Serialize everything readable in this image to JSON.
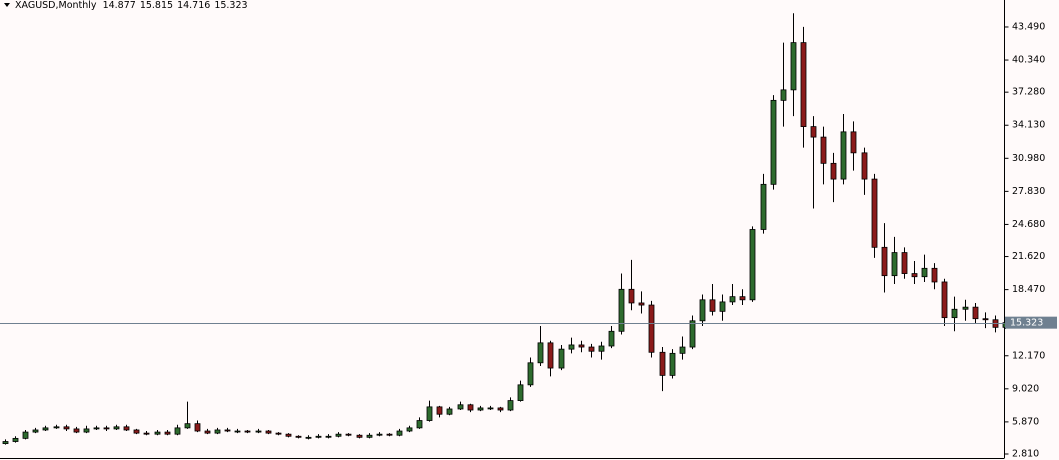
{
  "chart_data": {
    "type": "candlestick",
    "title": "XAGUSD,Monthly",
    "up_color": "#2e6b2e",
    "down_color": "#8b1a1a",
    "wick_color": "#000000",
    "price_line_color": "#6f8090",
    "grid": false,
    "ylim": [
      2.43,
      46.06
    ],
    "yticks": [
      {
        "value": 2.81,
        "label": "2.810"
      },
      {
        "value": 5.87,
        "label": "5.870"
      },
      {
        "value": 9.02,
        "label": "9.020"
      },
      {
        "value": 12.17,
        "label": "12.170"
      },
      {
        "value": 18.47,
        "label": "18.470"
      },
      {
        "value": 21.62,
        "label": "21.620"
      },
      {
        "value": 24.68,
        "label": "24.680"
      },
      {
        "value": 27.83,
        "label": "27.830"
      },
      {
        "value": 30.98,
        "label": "30.980"
      },
      {
        "value": 34.13,
        "label": "34.130"
      },
      {
        "value": 37.28,
        "label": "37.280"
      },
      {
        "value": 40.34,
        "label": "40.340"
      },
      {
        "value": 43.49,
        "label": "43.490"
      }
    ],
    "open": [
      3.8,
      4.0,
      4.3,
      4.9,
      5.1,
      5.3,
      5.4,
      5.2,
      4.9,
      5.2,
      5.3,
      5.2,
      5.4,
      5.1,
      4.8,
      4.7,
      4.9,
      4.7,
      5.3,
      5.7,
      5.0,
      4.8,
      5.1,
      5.0,
      5.0,
      4.9,
      5.0,
      4.8,
      4.7,
      4.5,
      4.4,
      4.4,
      4.5,
      4.5,
      4.7,
      4.6,
      4.4,
      4.6,
      4.7,
      4.6,
      5.0,
      5.3,
      6.0,
      7.3,
      6.6,
      7.1,
      7.5,
      7.0,
      7.2,
      7.2,
      7.0,
      7.9,
      9.4,
      11.5,
      13.4,
      11.0,
      12.8,
      13.2,
      13.0,
      12.6,
      13.1,
      14.5,
      18.5,
      17.2,
      17.0,
      12.5,
      10.3,
      12.4,
      13.0,
      15.5,
      17.5,
      16.4,
      17.3,
      17.8,
      17.5,
      24.2,
      28.5,
      36.5,
      37.5,
      42.0,
      34.0,
      33.0,
      30.5,
      29.0,
      33.5,
      31.5,
      29.0,
      22.5,
      19.8,
      22.0,
      20.0,
      19.7,
      20.5,
      19.2,
      15.8,
      16.6,
      16.8,
      15.7,
      15.6,
      14.877
    ],
    "high": [
      4.2,
      4.5,
      5.1,
      5.3,
      5.5,
      5.6,
      5.6,
      5.4,
      5.5,
      5.5,
      5.5,
      5.6,
      5.6,
      5.2,
      5.0,
      5.1,
      5.1,
      5.6,
      7.8,
      6.0,
      5.2,
      5.3,
      5.3,
      5.2,
      5.1,
      5.2,
      5.1,
      4.9,
      4.8,
      4.6,
      4.6,
      4.7,
      4.7,
      4.9,
      4.8,
      4.7,
      4.8,
      4.9,
      4.8,
      5.2,
      5.5,
      6.3,
      7.9,
      7.4,
      7.3,
      7.8,
      7.6,
      7.4,
      7.4,
      7.3,
      8.2,
      9.8,
      12.0,
      15.0,
      13.6,
      13.2,
      13.9,
      13.6,
      13.3,
      13.5,
      15.0,
      20.0,
      21.3,
      18.3,
      17.4,
      13.0,
      12.8,
      14.0,
      16.0,
      18.0,
      19.0,
      18.0,
      19.0,
      18.5,
      24.5,
      29.5,
      37.0,
      42.0,
      44.8,
      43.5,
      35.0,
      34.0,
      31.5,
      35.2,
      34.5,
      32.0,
      29.5,
      24.8,
      23.5,
      22.5,
      21.2,
      21.8,
      21.0,
      19.5,
      17.8,
      17.5,
      17.2,
      16.3,
      16.0,
      15.815
    ],
    "low": [
      3.7,
      3.9,
      4.2,
      4.8,
      5.0,
      5.2,
      5.0,
      4.8,
      4.8,
      5.1,
      5.0,
      5.1,
      5.0,
      4.7,
      4.6,
      4.6,
      4.6,
      4.6,
      5.2,
      4.9,
      4.7,
      4.7,
      4.9,
      4.8,
      4.8,
      4.8,
      4.7,
      4.6,
      4.4,
      4.3,
      4.2,
      4.3,
      4.3,
      4.4,
      4.5,
      4.3,
      4.3,
      4.5,
      4.5,
      4.5,
      4.9,
      5.2,
      5.9,
      6.3,
      6.5,
      7.0,
      6.8,
      6.9,
      7.0,
      6.8,
      6.9,
      7.8,
      9.2,
      11.2,
      10.2,
      10.8,
      12.4,
      12.5,
      12.0,
      11.8,
      12.9,
      14.2,
      16.5,
      16.2,
      12.0,
      8.8,
      10.0,
      11.8,
      12.8,
      15.0,
      16.0,
      15.5,
      17.0,
      17.0,
      17.3,
      23.8,
      28.0,
      34.0,
      35.0,
      32.0,
      26.2,
      28.5,
      26.8,
      28.5,
      29.8,
      27.5,
      21.5,
      18.2,
      19.0,
      19.5,
      19.0,
      19.2,
      18.5,
      15.0,
      14.5,
      15.5,
      15.2,
      14.8,
      14.4,
      14.716
    ],
    "close": [
      4.0,
      4.3,
      4.9,
      5.1,
      5.3,
      5.4,
      5.2,
      4.9,
      5.2,
      5.3,
      5.2,
      5.4,
      5.1,
      4.8,
      4.7,
      4.9,
      4.7,
      5.3,
      5.7,
      5.0,
      4.8,
      5.1,
      5.0,
      5.0,
      4.9,
      5.0,
      4.8,
      4.7,
      4.5,
      4.4,
      4.4,
      4.5,
      4.5,
      4.7,
      4.6,
      4.4,
      4.6,
      4.7,
      4.6,
      5.0,
      5.3,
      6.0,
      7.3,
      6.6,
      7.1,
      7.5,
      7.0,
      7.2,
      7.2,
      7.0,
      7.9,
      9.4,
      11.5,
      13.4,
      11.0,
      12.8,
      13.2,
      13.0,
      12.6,
      13.1,
      14.5,
      18.5,
      17.2,
      17.0,
      12.5,
      10.3,
      12.4,
      13.0,
      15.5,
      17.5,
      16.4,
      17.3,
      17.8,
      17.5,
      24.2,
      28.5,
      36.5,
      37.5,
      42.0,
      34.0,
      33.0,
      30.5,
      29.0,
      33.5,
      31.5,
      29.0,
      22.5,
      19.8,
      22.0,
      20.0,
      19.7,
      20.5,
      19.2,
      15.8,
      16.6,
      16.8,
      15.7,
      15.6,
      14.877,
      15.323
    ]
  }
}
